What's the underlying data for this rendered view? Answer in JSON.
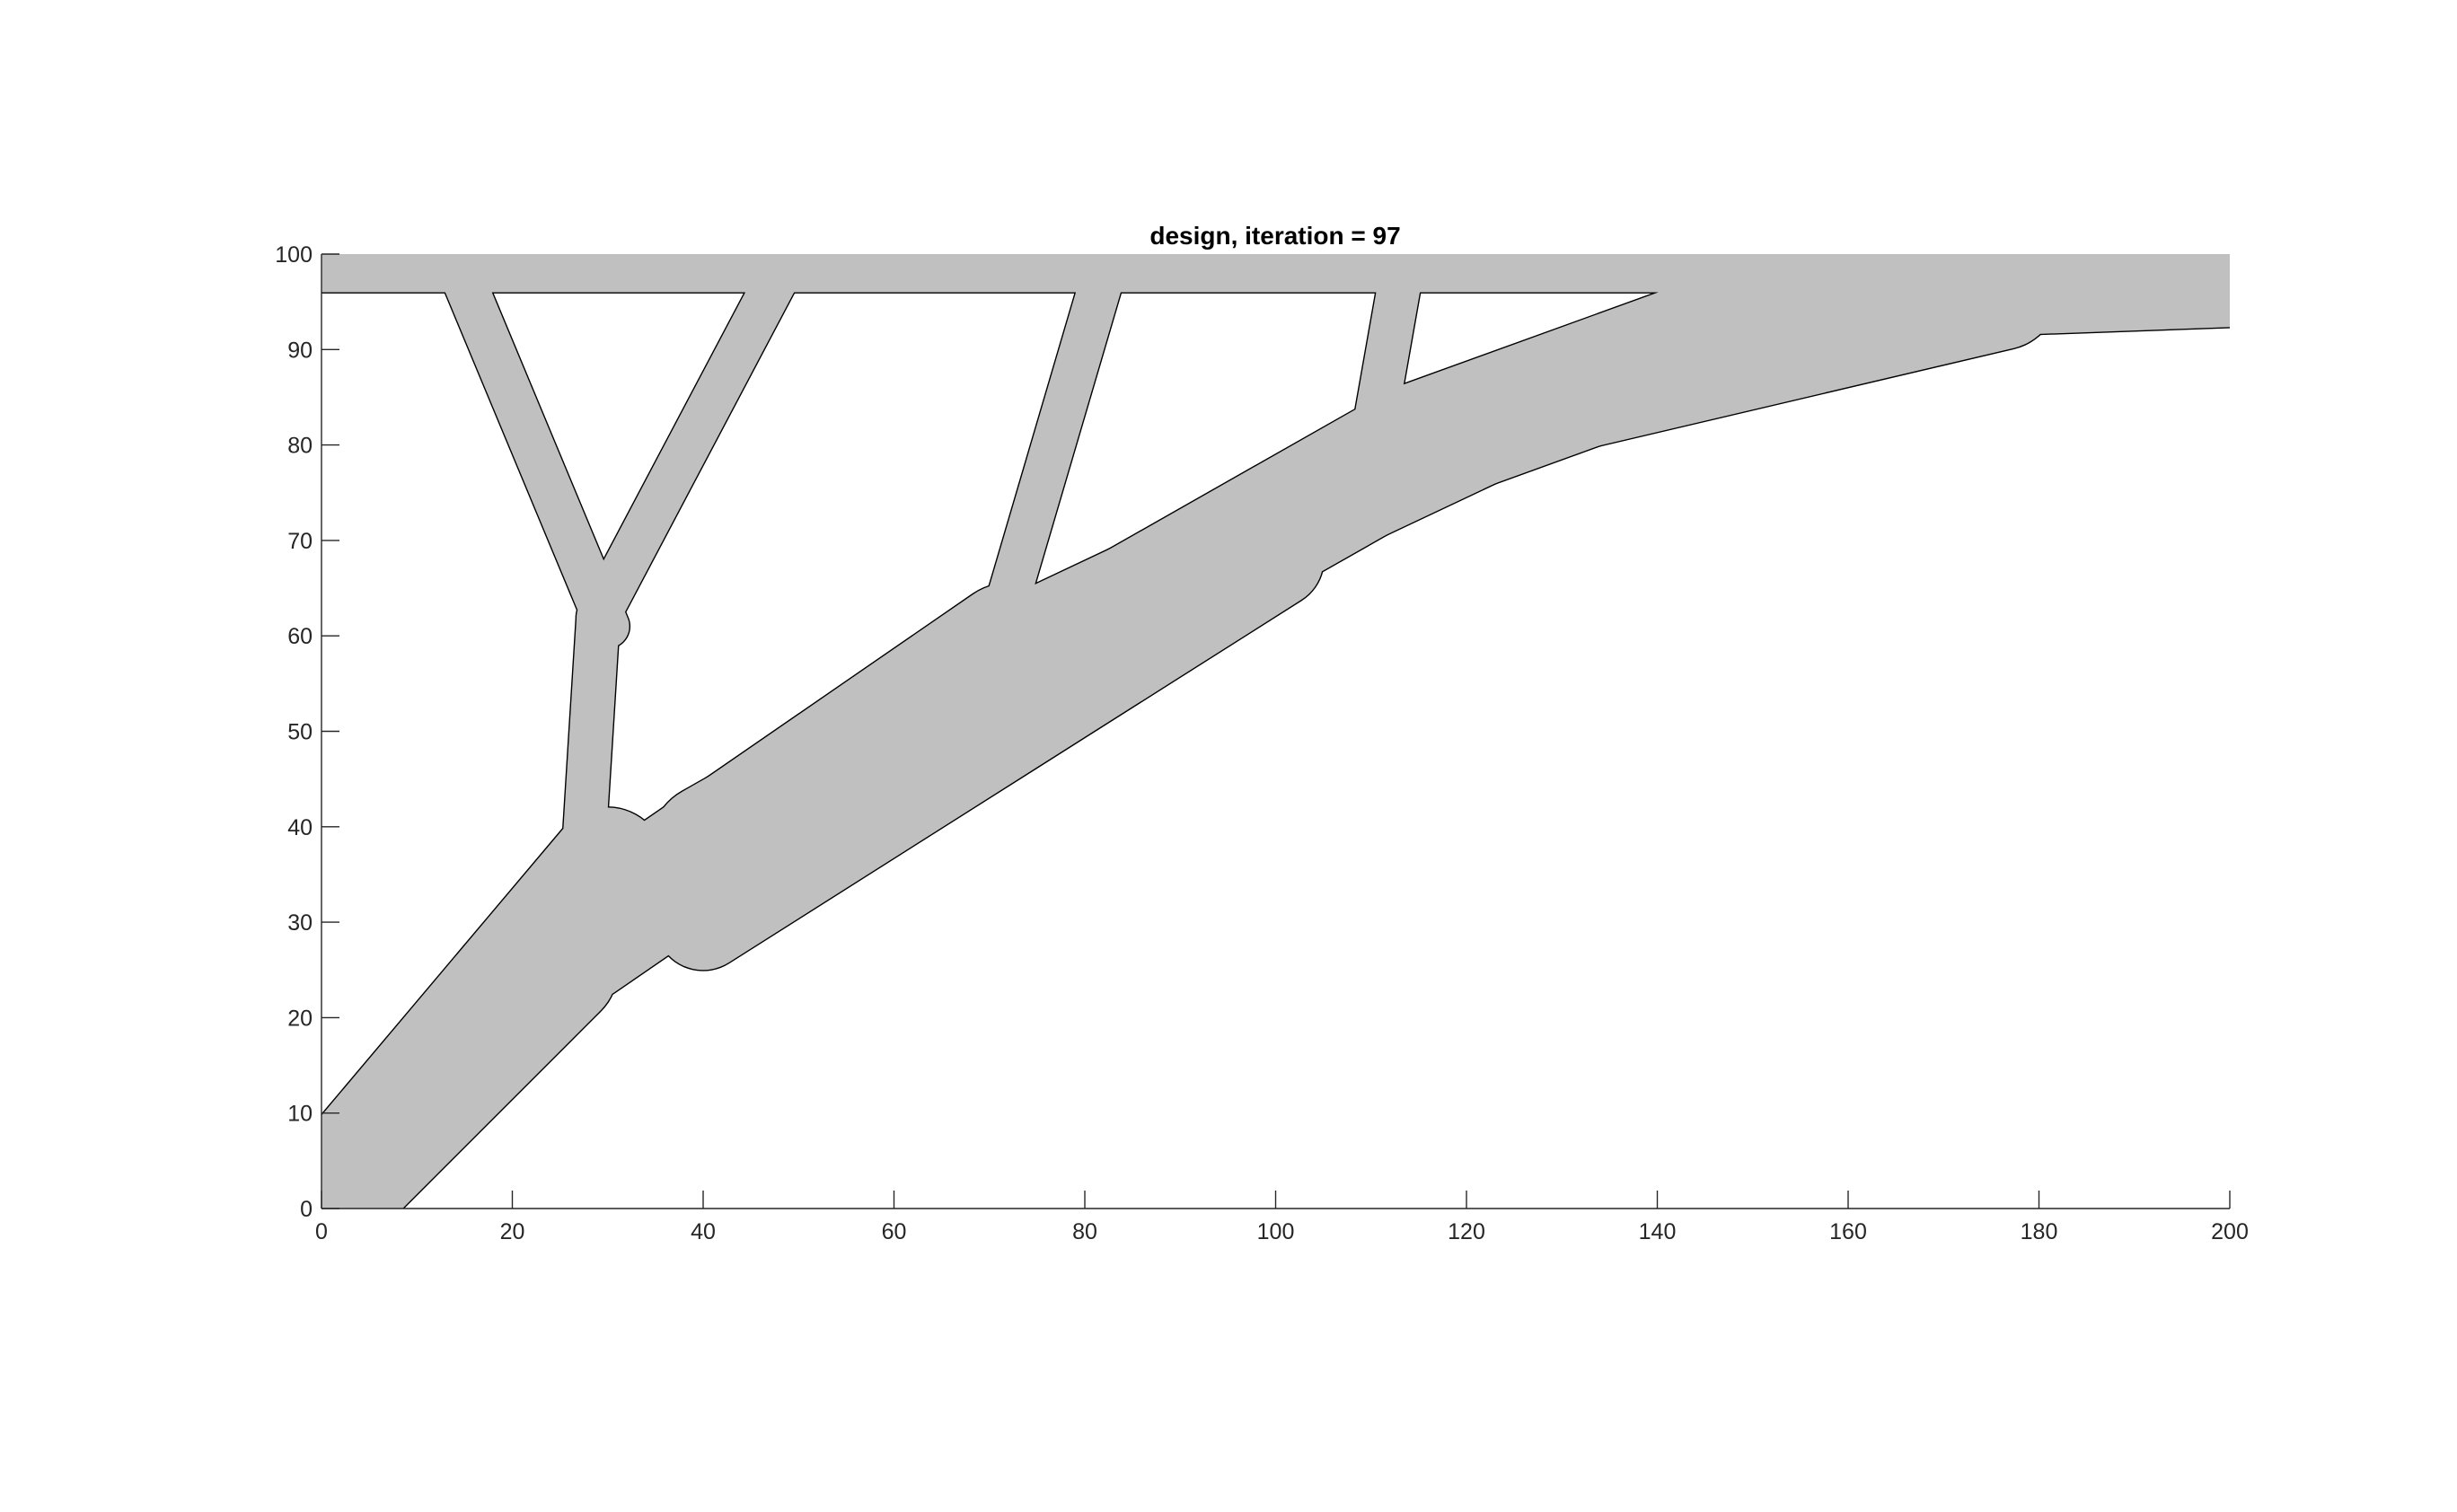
{
  "chart_data": {
    "type": "scatter",
    "title": "design, iteration = 97",
    "xlabel": "",
    "ylabel": "",
    "xlim": [
      0,
      200
    ],
    "ylim": [
      0,
      100
    ],
    "xticks": [
      "0",
      "20",
      "40",
      "60",
      "80",
      "100",
      "120",
      "140",
      "160",
      "180",
      "200"
    ],
    "yticks": [
      "0",
      "10",
      "20",
      "30",
      "40",
      "50",
      "60",
      "70",
      "80",
      "90",
      "100"
    ],
    "grid": false,
    "fill_color": "#c0c0c0",
    "edge_color": "#000000",
    "components": [
      {
        "x1": 0,
        "y1": 98,
        "x2": 200,
        "y2": 98,
        "width": 4,
        "cap": "butt"
      },
      {
        "x1": 15,
        "y1": 97,
        "x2": 30,
        "y2": 61,
        "width": 4.5,
        "cap": "round"
      },
      {
        "x1": 47.5,
        "y1": 97,
        "x2": 29,
        "y2": 62,
        "width": 4.5,
        "cap": "round"
      },
      {
        "x1": 29,
        "y1": 62,
        "x2": 27.5,
        "y2": 38,
        "width": 4.5,
        "cap": "round"
      },
      {
        "x1": 82,
        "y1": 98,
        "x2": 72,
        "y2": 64,
        "width": 4.5,
        "cap": "round"
      },
      {
        "x1": 113,
        "y1": 97,
        "x2": 110,
        "y2": 80,
        "width": 4.5,
        "cap": "round"
      },
      {
        "x1": 30,
        "y1": 36,
        "x2": 3,
        "y2": 4,
        "width": 12,
        "cap": "round"
      },
      {
        "x1": 25,
        "y1": 25,
        "x2": 3,
        "y2": 3,
        "width": 12,
        "cap": "round"
      },
      {
        "x1": 27,
        "y1": 28,
        "x2": 72,
        "y2": 59,
        "width": 13,
        "cap": "round"
      },
      {
        "x1": 40,
        "y1": 30,
        "x2": 100,
        "y2": 68,
        "width": 10,
        "cap": "round"
      },
      {
        "x1": 41,
        "y1": 38,
        "x2": 115,
        "y2": 80,
        "width": 13,
        "cap": "round"
      },
      {
        "x1": 72,
        "y1": 58,
        "x2": 125,
        "y2": 83,
        "width": 11,
        "cap": "round"
      },
      {
        "x1": 115,
        "y1": 80,
        "x2": 162,
        "y2": 97,
        "width": 13,
        "cap": "round"
      },
      {
        "x1": 125,
        "y1": 84,
        "x2": 176,
        "y2": 96,
        "width": 12,
        "cap": "round"
      },
      {
        "x1": 176,
        "y1": 96,
        "x2": 204,
        "y2": 97,
        "width": 9,
        "cap": "butt"
      }
    ]
  }
}
